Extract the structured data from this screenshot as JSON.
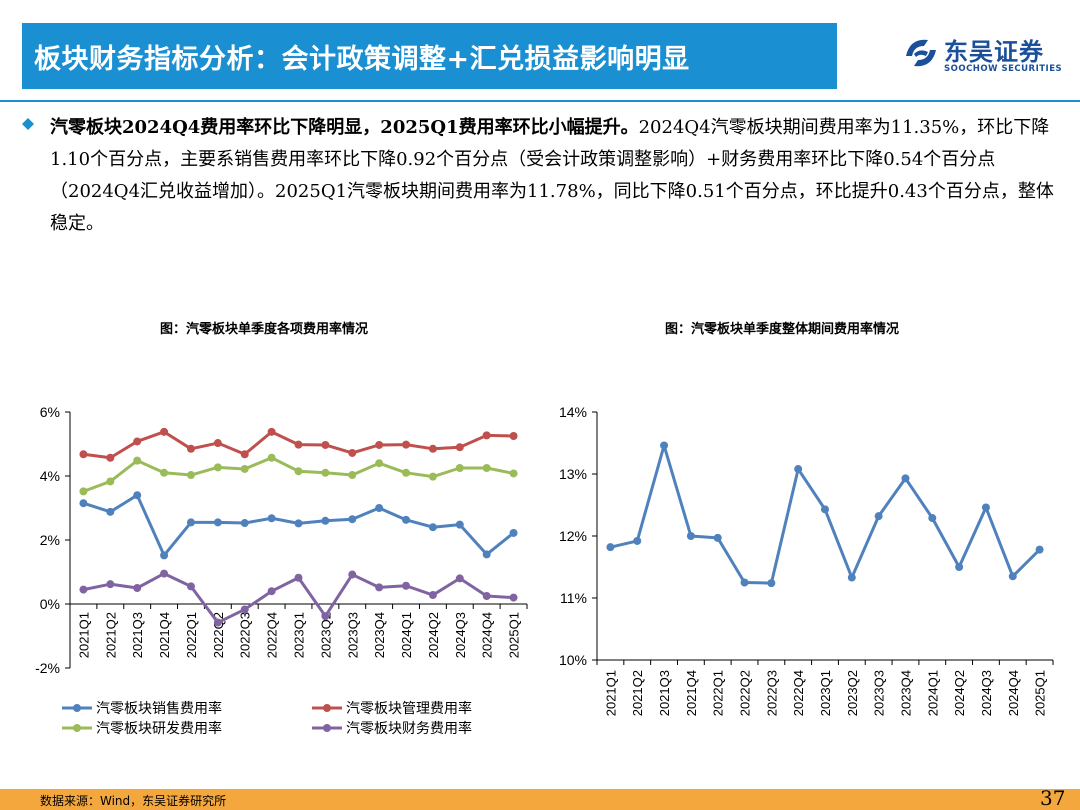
{
  "header": {
    "title": "板块财务指标分析：会计政策调整+汇兑损益影响明显",
    "logo_cn": "东吴证券",
    "logo_en": "SOOCHOW SECURITIES",
    "colors": {
      "title_bg": "#1a8fd2",
      "logo": "#1a4f99"
    }
  },
  "body": {
    "bold_lead": "汽零板块2024Q4费用率环比下降明显，2025Q1费用率环比小幅提升。",
    "text": "2024Q4汽零板块期间费用率为11.35%，环比下降1.10个百分点，主要系销售费用率环比下降0.92个百分点（受会计政策调整影响）+财务费用率环比下降0.54个百分点（2024Q4汇兑收益增加）。2025Q1汽零板块期间费用率为11.78%，同比下降0.51个百分点，环比提升0.43个百分点，整体稳定。"
  },
  "chart_data": [
    {
      "type": "line",
      "title": "图：汽零板块单季度各项费用率情况",
      "x": [
        "2021Q1",
        "2021Q2",
        "2021Q3",
        "2021Q4",
        "2022Q1",
        "2022Q2",
        "2022Q3",
        "2022Q4",
        "2023Q1",
        "2023Q2",
        "2023Q3",
        "2023Q4",
        "2024Q1",
        "2024Q2",
        "2024Q3",
        "2024Q4",
        "2025Q1"
      ],
      "yticks": [
        "6%",
        "4%",
        "2%",
        "0%",
        "-2%"
      ],
      "ylim": [
        -2,
        6
      ],
      "legend_position": "bottom",
      "series": [
        {
          "name": "汽零板块销售费用率",
          "color": "#4f81bd",
          "values": [
            3.15,
            2.88,
            3.4,
            1.52,
            2.55,
            2.55,
            2.53,
            2.68,
            2.52,
            2.6,
            2.65,
            3.0,
            2.63,
            2.4,
            2.48,
            1.55,
            2.22
          ]
        },
        {
          "name": "汽零板块管理费用率",
          "color": "#c0504d",
          "values": [
            4.68,
            4.57,
            5.08,
            5.38,
            4.85,
            5.03,
            4.68,
            5.38,
            4.98,
            4.97,
            4.72,
            4.97,
            4.98,
            4.85,
            4.9,
            5.27,
            5.25
          ]
        },
        {
          "name": "汽零板块研发费用率",
          "color": "#9bbb59",
          "values": [
            3.52,
            3.83,
            4.48,
            4.1,
            4.03,
            4.27,
            4.22,
            4.57,
            4.15,
            4.1,
            4.03,
            4.4,
            4.1,
            3.98,
            4.25,
            4.25,
            4.08
          ]
        },
        {
          "name": "汽零板块财务费用率",
          "color": "#8064a2",
          "values": [
            0.45,
            0.62,
            0.5,
            0.95,
            0.55,
            -0.58,
            -0.17,
            0.4,
            0.82,
            -0.38,
            0.92,
            0.52,
            0.57,
            0.28,
            0.8,
            0.25,
            0.2
          ]
        }
      ]
    },
    {
      "type": "line",
      "title": "图：汽零板块单季度整体期间费用率情况",
      "x": [
        "2021Q1",
        "2021Q2",
        "2021Q3",
        "2021Q4",
        "2022Q1",
        "2022Q2",
        "2022Q3",
        "2022Q4",
        "2023Q1",
        "2023Q2",
        "2023Q3",
        "2023Q4",
        "2024Q1",
        "2024Q2",
        "2024Q3",
        "2024Q4",
        "2025Q1"
      ],
      "yticks": [
        "14%",
        "13%",
        "12%",
        "11%",
        "10%"
      ],
      "ylim": [
        10,
        14
      ],
      "series": [
        {
          "color": "#4f81bd",
          "values": [
            11.82,
            11.92,
            13.46,
            12.0,
            11.97,
            11.25,
            11.24,
            13.08,
            12.43,
            11.33,
            12.32,
            12.93,
            12.29,
            11.5,
            12.46,
            11.35,
            11.78
          ]
        }
      ]
    }
  ],
  "footer": {
    "source": "数据来源：Wind，东吴证券研究所",
    "page": "37",
    "color": "#f4a73c"
  }
}
